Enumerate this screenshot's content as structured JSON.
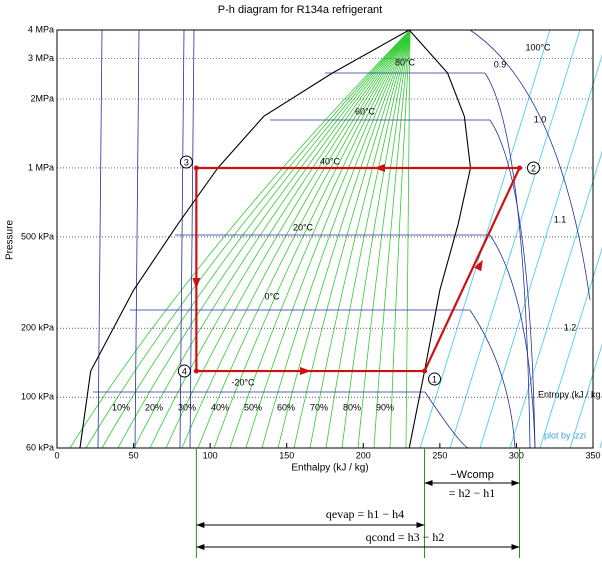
{
  "chart_data": {
    "type": "line",
    "title": "P-h diagram for R134a refrigerant",
    "x_label": "Enthalpy (kJ / kg)",
    "y_label": "Pressure",
    "xlim": [
      0,
      350
    ],
    "xticks": [
      0,
      50,
      100,
      150,
      200,
      250,
      300,
      350
    ],
    "ylim": [
      60,
      4000
    ],
    "log_y": true,
    "grid": true,
    "yticks": [
      {
        "value": 60,
        "label": "60 kPa"
      },
      {
        "value": 100,
        "label": "100 kPa"
      },
      {
        "value": 200,
        "label": "200 kPa"
      },
      {
        "value": 500,
        "label": "500 kPa"
      },
      {
        "value": 1000,
        "label": "1 MPa"
      },
      {
        "value": 2000,
        "label": "2MPa"
      },
      {
        "value": 3000,
        "label": "3 MPa"
      },
      {
        "value": 4000,
        "label": "4 MPa"
      }
    ],
    "series": [
      {
        "color": "#000000",
        "x": [
          15,
          22,
          50,
          79,
          105,
          135,
          180,
          230,
          255,
          266,
          270,
          262,
          250,
          240,
          230
        ],
        "values": [
          60,
          130,
          293,
          570,
          1000,
          1680,
          2600,
          4000,
          2600,
          1680,
          1000,
          570,
          293,
          130,
          60
        ]
      },
      {
        "color": "#cc1111",
        "x": [
          240,
          302,
          91,
          91,
          240
        ],
        "values": [
          130,
          1000,
          1000,
          130,
          130
        ]
      }
    ],
    "point_labels": [
      "1",
      "2",
      "3",
      "4"
    ],
    "isotherm_labels": [
      "80°C",
      "60°C",
      "40°C",
      "20°C",
      "0°C",
      "-20°C",
      "100°C"
    ],
    "quality_labels": [
      "10%",
      "20%",
      "30%",
      "40%",
      "50%",
      "60%",
      "70%",
      "80%",
      "90%"
    ],
    "entropy_labels": [
      "0.9",
      "1.0",
      "1.1",
      "1.2"
    ],
    "entropy_title": "Entropy (kJ / kg.K)",
    "credit": "plot by izzi",
    "equations": [
      "−Wcomp",
      "= h2 − h1",
      "qevap = h1 − h4",
      "qcond = h3 − h2"
    ]
  }
}
